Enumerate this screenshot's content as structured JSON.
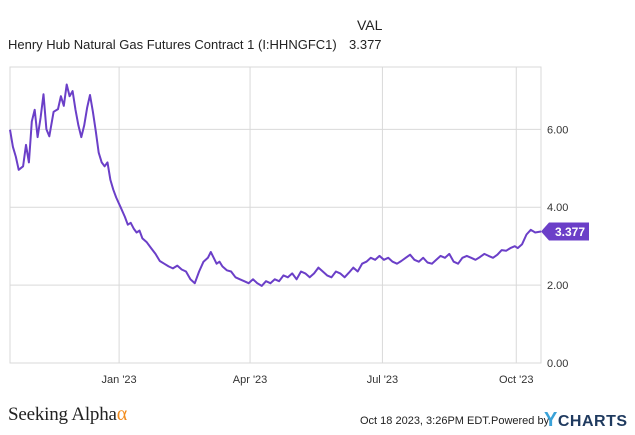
{
  "header": {
    "value_column": "VAL",
    "series_label": "Henry Hub Natural Gas Futures Contract 1 (I:HHNGFC1)",
    "series_value": "3.377"
  },
  "footer": {
    "logo_text": "Seeking Alpha",
    "logo_alpha": "α",
    "timestamp": "Oct 18 2023, 3:26PM EDT.",
    "powered_by": "Powered by",
    "brand_y": "Y",
    "brand_rest": "CHARTS"
  },
  "colors": {
    "line": "#6b3fc8",
    "grid": "#d9d9d9",
    "badge": "#6b3fc8",
    "axis_text": "#333333"
  },
  "chart_data": {
    "type": "line",
    "x_tick_labels": [
      "Jan '23",
      "Apr '23",
      "Jul '23",
      "Oct '23"
    ],
    "x_tick_dates": [
      "2023-01-01",
      "2023-04-01",
      "2023-07-01",
      "2023-10-01"
    ],
    "y_tick_labels": [
      "0.00",
      "2.00",
      "4.00",
      "6.00"
    ],
    "y_ticks": [
      0,
      2,
      4,
      6
    ],
    "ylim": [
      0,
      7.6
    ],
    "xlim": [
      "2022-10-18",
      "2023-10-18"
    ],
    "last_value_label": "3.377",
    "grid": true,
    "series": [
      {
        "name": "Henry Hub Natural Gas Futures Contract 1 (I:HHNGFC1)",
        "points": [
          [
            "2022-10-18",
            5.99
          ],
          [
            "2022-10-20",
            5.55
          ],
          [
            "2022-10-22",
            5.3
          ],
          [
            "2022-10-24",
            4.96
          ],
          [
            "2022-10-27",
            5.05
          ],
          [
            "2022-10-29",
            5.6
          ],
          [
            "2022-10-31",
            5.15
          ],
          [
            "2022-11-02",
            6.2
          ],
          [
            "2022-11-04",
            6.5
          ],
          [
            "2022-11-06",
            5.8
          ],
          [
            "2022-11-08",
            6.3
          ],
          [
            "2022-11-10",
            6.9
          ],
          [
            "2022-11-12",
            6.0
          ],
          [
            "2022-11-14",
            5.82
          ],
          [
            "2022-11-17",
            6.45
          ],
          [
            "2022-11-20",
            6.52
          ],
          [
            "2022-11-22",
            6.85
          ],
          [
            "2022-11-24",
            6.6
          ],
          [
            "2022-11-26",
            7.15
          ],
          [
            "2022-11-28",
            6.85
          ],
          [
            "2022-11-30",
            6.98
          ],
          [
            "2022-12-02",
            6.5
          ],
          [
            "2022-12-04",
            6.1
          ],
          [
            "2022-12-06",
            5.8
          ],
          [
            "2022-12-08",
            6.1
          ],
          [
            "2022-12-10",
            6.55
          ],
          [
            "2022-12-12",
            6.88
          ],
          [
            "2022-12-14",
            6.45
          ],
          [
            "2022-12-16",
            5.95
          ],
          [
            "2022-12-18",
            5.4
          ],
          [
            "2022-12-20",
            5.15
          ],
          [
            "2022-12-22",
            5.05
          ],
          [
            "2022-12-24",
            5.15
          ],
          [
            "2022-12-26",
            4.7
          ],
          [
            "2022-12-28",
            4.45
          ],
          [
            "2022-12-30",
            4.25
          ],
          [
            "2023-01-02",
            4.0
          ],
          [
            "2023-01-05",
            3.75
          ],
          [
            "2023-01-07",
            3.55
          ],
          [
            "2023-01-09",
            3.6
          ],
          [
            "2023-01-11",
            3.45
          ],
          [
            "2023-01-13",
            3.35
          ],
          [
            "2023-01-15",
            3.4
          ],
          [
            "2023-01-17",
            3.2
          ],
          [
            "2023-01-20",
            3.1
          ],
          [
            "2023-01-23",
            2.95
          ],
          [
            "2023-01-26",
            2.8
          ],
          [
            "2023-01-29",
            2.62
          ],
          [
            "2023-02-01",
            2.55
          ],
          [
            "2023-02-04",
            2.48
          ],
          [
            "2023-02-07",
            2.43
          ],
          [
            "2023-02-10",
            2.5
          ],
          [
            "2023-02-13",
            2.4
          ],
          [
            "2023-02-16",
            2.35
          ],
          [
            "2023-02-19",
            2.15
          ],
          [
            "2023-02-22",
            2.05
          ],
          [
            "2023-02-25",
            2.35
          ],
          [
            "2023-02-28",
            2.6
          ],
          [
            "2023-03-03",
            2.7
          ],
          [
            "2023-03-05",
            2.85
          ],
          [
            "2023-03-07",
            2.7
          ],
          [
            "2023-03-09",
            2.55
          ],
          [
            "2023-03-11",
            2.6
          ],
          [
            "2023-03-13",
            2.48
          ],
          [
            "2023-03-16",
            2.38
          ],
          [
            "2023-03-19",
            2.35
          ],
          [
            "2023-03-22",
            2.2
          ],
          [
            "2023-03-25",
            2.15
          ],
          [
            "2023-03-28",
            2.1
          ],
          [
            "2023-03-31",
            2.05
          ],
          [
            "2023-04-03",
            2.15
          ],
          [
            "2023-04-06",
            2.05
          ],
          [
            "2023-04-09",
            1.98
          ],
          [
            "2023-04-12",
            2.1
          ],
          [
            "2023-04-15",
            2.05
          ],
          [
            "2023-04-18",
            2.15
          ],
          [
            "2023-04-21",
            2.1
          ],
          [
            "2023-04-24",
            2.25
          ],
          [
            "2023-04-27",
            2.2
          ],
          [
            "2023-04-30",
            2.3
          ],
          [
            "2023-05-03",
            2.15
          ],
          [
            "2023-05-06",
            2.35
          ],
          [
            "2023-05-09",
            2.3
          ],
          [
            "2023-05-12",
            2.2
          ],
          [
            "2023-05-15",
            2.3
          ],
          [
            "2023-05-18",
            2.45
          ],
          [
            "2023-05-21",
            2.35
          ],
          [
            "2023-05-24",
            2.25
          ],
          [
            "2023-05-27",
            2.2
          ],
          [
            "2023-05-30",
            2.35
          ],
          [
            "2023-06-02",
            2.3
          ],
          [
            "2023-06-05",
            2.2
          ],
          [
            "2023-06-08",
            2.32
          ],
          [
            "2023-06-11",
            2.45
          ],
          [
            "2023-06-14",
            2.35
          ],
          [
            "2023-06-17",
            2.55
          ],
          [
            "2023-06-20",
            2.6
          ],
          [
            "2023-06-23",
            2.7
          ],
          [
            "2023-06-26",
            2.65
          ],
          [
            "2023-06-29",
            2.75
          ],
          [
            "2023-07-02",
            2.65
          ],
          [
            "2023-07-05",
            2.7
          ],
          [
            "2023-07-08",
            2.6
          ],
          [
            "2023-07-11",
            2.55
          ],
          [
            "2023-07-14",
            2.62
          ],
          [
            "2023-07-17",
            2.7
          ],
          [
            "2023-07-20",
            2.78
          ],
          [
            "2023-07-23",
            2.65
          ],
          [
            "2023-07-26",
            2.6
          ],
          [
            "2023-07-29",
            2.7
          ],
          [
            "2023-08-01",
            2.58
          ],
          [
            "2023-08-04",
            2.55
          ],
          [
            "2023-08-07",
            2.65
          ],
          [
            "2023-08-10",
            2.75
          ],
          [
            "2023-08-13",
            2.7
          ],
          [
            "2023-08-16",
            2.8
          ],
          [
            "2023-08-19",
            2.6
          ],
          [
            "2023-08-22",
            2.55
          ],
          [
            "2023-08-25",
            2.7
          ],
          [
            "2023-08-28",
            2.75
          ],
          [
            "2023-08-31",
            2.7
          ],
          [
            "2023-09-03",
            2.65
          ],
          [
            "2023-09-06",
            2.72
          ],
          [
            "2023-09-09",
            2.8
          ],
          [
            "2023-09-12",
            2.75
          ],
          [
            "2023-09-15",
            2.7
          ],
          [
            "2023-09-18",
            2.78
          ],
          [
            "2023-09-21",
            2.9
          ],
          [
            "2023-09-24",
            2.88
          ],
          [
            "2023-09-27",
            2.95
          ],
          [
            "2023-09-30",
            3.0
          ],
          [
            "2023-10-02",
            2.95
          ],
          [
            "2023-10-05",
            3.05
          ],
          [
            "2023-10-08",
            3.3
          ],
          [
            "2023-10-11",
            3.42
          ],
          [
            "2023-10-14",
            3.35
          ],
          [
            "2023-10-18",
            3.377
          ]
        ]
      }
    ]
  }
}
